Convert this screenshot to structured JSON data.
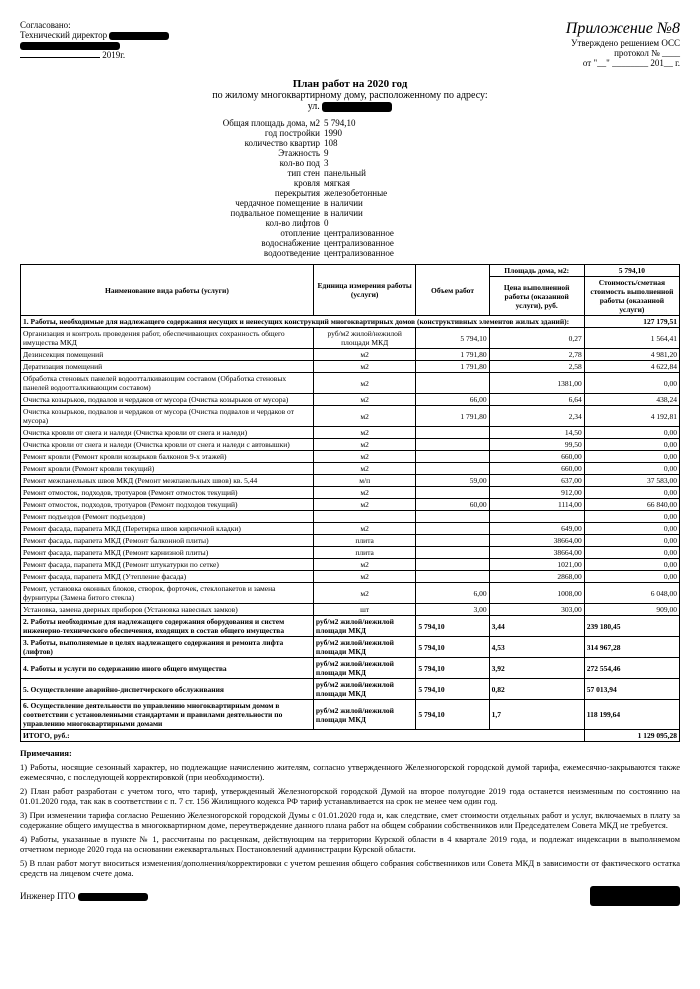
{
  "top": {
    "agree": "Согласовано:",
    "position": "Технический директор",
    "year_suffix": "2019г.",
    "app_hand": "Приложение №8",
    "approved": "Утверждено решением ОСС",
    "protocol": "протокол № ____",
    "date_line": "от \"__\" ________ 201__ г."
  },
  "title": "План работ на 2020 год",
  "subtitle": "по жилому многоквартирному дому, расположенному по адресу:",
  "street_prefix": "ул.",
  "props": [
    [
      "Общая площадь дома, м2",
      "5 794,10"
    ],
    [
      "год постройки",
      "1990"
    ],
    [
      "количество квартир",
      "108"
    ],
    [
      "Этажность",
      "9"
    ],
    [
      "кол-во под",
      "3"
    ],
    [
      "тип стен",
      "панельный"
    ],
    [
      "кровля",
      "мягкая"
    ],
    [
      "перекрытия",
      "железобетонные"
    ],
    [
      "чердачное помещение",
      "в наличии"
    ],
    [
      "подвальное помещение",
      "в наличии"
    ],
    [
      "кол-во лифтов",
      "0"
    ],
    [
      "отопление",
      "централизованное"
    ],
    [
      "водоснабжение",
      "централизованное"
    ],
    [
      "водоотведение",
      "централизованное"
    ]
  ],
  "area_label": "Площадь дома, м2:",
  "area_val": "5 794,10",
  "headers": {
    "h1": "Наименование вида работы (услуги)",
    "h2": "Единица измерения работы (услуги)",
    "h3": "Объем работ",
    "h4": "Цена выполненной работы (оказанной услуги), руб.",
    "h5": "Стоимость/сметная стоимость выполненной работы (оказанной услуги)"
  },
  "section1": {
    "title": "1. Работы, необходимые для надлежащего содержания несущих и ненесущих конструкций многоквартирных домов (конструктивных элементов жилых зданий):",
    "total": "127 179,51"
  },
  "rows1": [
    [
      "Организация и контроль проведения работ, обеспечивающих сохранность общего имущества МКД",
      "руб/м2 жилой/нежилой площади МКД",
      "5 794,10",
      "0,27",
      "1 564,41"
    ],
    [
      "Дезинсекция помещений",
      "м2",
      "1 791,80",
      "2,78",
      "4 981,20"
    ],
    [
      "Дератизация помещений",
      "м2",
      "1 791,80",
      "2,58",
      "4 622,84"
    ],
    [
      "Обработка стеновых панелей водоотталкивающим составом (Обработка стеновых панелей водоотталкивающим составом)",
      "м2",
      "",
      "1381,00",
      "0,00"
    ],
    [
      "Очистка козырьков, подвалов и чердаков от мусора (Очистка козырьков от мусора)",
      "м2",
      "66,00",
      "6,64",
      "438,24"
    ],
    [
      "Очистка козырьков, подвалов и чердаков от мусора (Очистка подвалов и чердаков от мусора)",
      "м2",
      "1 791,80",
      "2,34",
      "4 192,81"
    ],
    [
      "Очистка кровли от снега и наледи (Очистка кровли от снега и наледи)",
      "м2",
      "",
      "14,50",
      "0,00"
    ],
    [
      "Очистка кровли от снега и наледи (Очистка кровли от снега и наледи с автовышки)",
      "м2",
      "",
      "99,50",
      "0,00"
    ],
    [
      "Ремонт кровли (Ремонт кровли козырьков балконов 9-х этажей)",
      "м2",
      "",
      "660,00",
      "0,00"
    ],
    [
      "Ремонт кровли (Ремонт кровли текущий)",
      "м2",
      "",
      "660,00",
      "0,00"
    ],
    [
      "Ремонт межпанельных швов МКД (Ремонт межпанельных швов) кв. 5,44",
      "м/п",
      "59,00",
      "637,00",
      "37 583,00"
    ],
    [
      "Ремонт отмосток, подходов, тротуаров (Ремонт отмосток текущий)",
      "м2",
      "",
      "912,00",
      "0,00"
    ],
    [
      "Ремонт отмосток, подходов, тротуаров (Ремонт подходов текущий)",
      "м2",
      "60,00",
      "1114,00",
      "66 840,00"
    ],
    [
      "Ремонт подъездов (Ремонт подъездов)",
      "",
      "",
      "",
      "0,00"
    ],
    [
      "Ремонт фасада, парапета МКД (Перетирка швов кирпичной кладки)",
      "м2",
      "",
      "649,00",
      "0,00"
    ],
    [
      "Ремонт фасада, парапета МКД (Ремонт балконной плиты)",
      "плита",
      "",
      "38664,00",
      "0,00"
    ],
    [
      "Ремонт фасада, парапета МКД (Ремонт карнизной плиты)",
      "плита",
      "",
      "38664,00",
      "0,00"
    ],
    [
      "Ремонт фасада, парапета МКД (Ремонт штукатурки по сетке)",
      "м2",
      "",
      "1021,00",
      "0,00"
    ],
    [
      "Ремонт фасада, парапета МКД (Утепление фасада)",
      "м2",
      "",
      "2868,00",
      "0,00"
    ],
    [
      "Ремонт, установка оконных блоков, створок, форточек, стеклопакетов и замена фурнитуры (Замена битого стекла)",
      "м2",
      "6,00",
      "1008,00",
      "6 048,00"
    ],
    [
      "Установка, замена дверных приборов (Установка навесных замков)",
      "шт",
      "3,00",
      "303,00",
      "909,00"
    ]
  ],
  "sections": [
    [
      "2. Работы необходимые для надлежащего содержания оборудования и систем инженерно-технического обеспечения, входящих в состав общего имущества",
      "руб/м2 жилой/нежилой площади МКД",
      "5 794,10",
      "3,44",
      "239 180,45"
    ],
    [
      "3. Работы, выполняемые в целях надлежащего содержания и ремонта лифта (лифтов)",
      "руб/м2 жилой/нежилой площади МКД",
      "5 794,10",
      "4,53",
      "314 967,28"
    ],
    [
      "4. Работы и услуги по содержанию иного общего имущества",
      "руб/м2 жилой/нежилой площади МКД",
      "5 794,10",
      "3,92",
      "272 554,46"
    ],
    [
      "5. Осуществление аварийно-диспетчерского обслуживания",
      "руб/м2 жилой/нежилой площади МКД",
      "5 794,10",
      "0,82",
      "57 013,94"
    ],
    [
      "6. Осуществление деятельности по управлению многоквартирным домом в соответствии с установленными стандартами и правилами деятельности по управлению многоквартирными домами",
      "руб/м2 жилой/нежилой площади МКД",
      "5 794,10",
      "1,7",
      "118 199,64"
    ]
  ],
  "grand_label": "ИТОГО, руб.:",
  "grand_total": "1 129 095,28",
  "notes_title": "Примечания:",
  "notes": [
    "1) Работы, носящие сезонный характер, но подлежащие начислению жителям, согласно утвержденного Железногорской городской думой тарифа, ежемесячно-закрываются также ежемесячно, с последующей корректировкой (при необходимости).",
    "2) План работ разработан с учетом того, что тариф, утвержденный Железногорской городской Думой на второе полугодие 2019 года останется неизменным по состоянию на 01.01.2020 года, так как в соответствии с п. 7 ст. 156  Жилищного кодекса РФ тариф устанавливается на срок не менее чем один год.",
    "3) При изменении тарифа согласно Решению Железногорской городской Думы с 01.01.2020 года и, как следствие, смет стоимости отдельных работ и услуг, включаемых в плату за содержание общего имущества в многоквартирном доме, переутверждение данного плана работ на общем собрании собственников или Председателем Совета МКД не требуется.",
    "4) Работы, указанные в пункте № 1, рассчитаны по расценкам, действующим на территории Курской области в 4 квартале 2019 года, и подлежат индексации в выполняемом отчетном периоде 2020 года на основании ежеквартальных Постановлений администрации Курской области.",
    "5) В план работ могут вноситься изменения/дополнения/корректировки с учетом решения общего собрания собственников или Совета МКД в зависимости от фактического остатка средств на лицевом счете дома."
  ],
  "engineer": "Инженер ПТО"
}
